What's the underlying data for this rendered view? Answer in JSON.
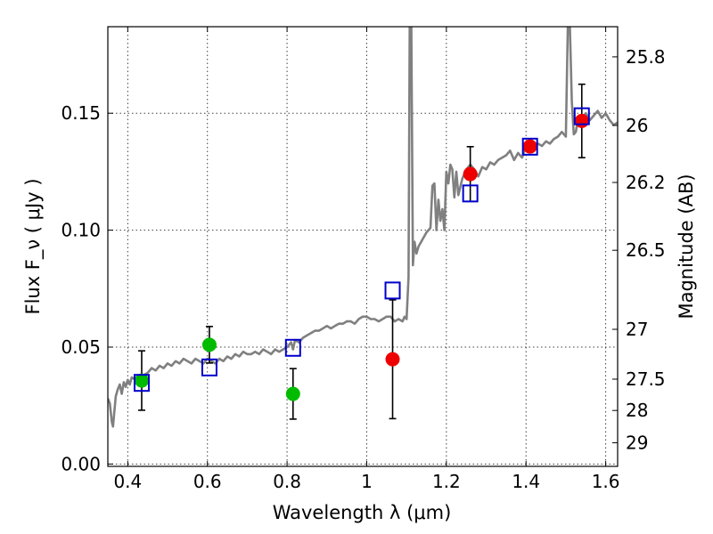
{
  "chart_data": {
    "type": "scatter",
    "xlabel": "Wavelength  λ (μm)",
    "ylabel": "Flux  F_ν  ( μJy )",
    "ylabel_right": "Magnitude (AB)",
    "xlim": [
      0.35,
      1.63
    ],
    "ylim": [
      -0.001,
      0.187
    ],
    "grid": true,
    "x_ticks": [
      0.4,
      0.6,
      0.8,
      1.0,
      1.2,
      1.4,
      1.6
    ],
    "x_tick_labels": [
      "0.4",
      "0.6",
      "0.8",
      "1",
      "1.2",
      "1.4",
      "1.6"
    ],
    "y_ticks": [
      0.0,
      0.05,
      0.1,
      0.15
    ],
    "y_tick_labels": [
      "0.00",
      "0.05",
      "0.10",
      "0.15"
    ],
    "right_ticks": [
      {
        "label": "25.8",
        "flux": 0.1741
      },
      {
        "label": "26",
        "flux": 0.1448
      },
      {
        "label": "26.2",
        "flux": 0.1204
      },
      {
        "label": "26.5",
        "flux": 0.0914
      },
      {
        "label": "27",
        "flux": 0.0576
      },
      {
        "label": "27.5",
        "flux": 0.0363
      },
      {
        "label": "28",
        "flux": 0.0229
      },
      {
        "label": "29",
        "flux": 0.0091
      }
    ],
    "series": [
      {
        "kind": "model-spectrum",
        "color": "#808080",
        "x": [
          0.35,
          0.355,
          0.36,
          0.363,
          0.366,
          0.37,
          0.375,
          0.38,
          0.385,
          0.39,
          0.395,
          0.4,
          0.405,
          0.41,
          0.42,
          0.43,
          0.44,
          0.45,
          0.46,
          0.47,
          0.48,
          0.49,
          0.5,
          0.51,
          0.52,
          0.53,
          0.54,
          0.55,
          0.56,
          0.57,
          0.58,
          0.59,
          0.6,
          0.61,
          0.62,
          0.63,
          0.64,
          0.65,
          0.66,
          0.67,
          0.68,
          0.69,
          0.7,
          0.71,
          0.72,
          0.73,
          0.74,
          0.75,
          0.76,
          0.77,
          0.78,
          0.79,
          0.8,
          0.81,
          0.815,
          0.82,
          0.83,
          0.84,
          0.85,
          0.86,
          0.87,
          0.88,
          0.89,
          0.9,
          0.91,
          0.92,
          0.93,
          0.94,
          0.95,
          0.96,
          0.97,
          0.98,
          0.99,
          1.0,
          1.01,
          1.02,
          1.03,
          1.04,
          1.05,
          1.06,
          1.07,
          1.08,
          1.09,
          1.095,
          1.1,
          1.105,
          1.108,
          1.112,
          1.116,
          1.12,
          1.125,
          1.13,
          1.14,
          1.15,
          1.16,
          1.165,
          1.17,
          1.175,
          1.18,
          1.185,
          1.19,
          1.195,
          1.2,
          1.205,
          1.21,
          1.215,
          1.22,
          1.225,
          1.23,
          1.24,
          1.25,
          1.26,
          1.27,
          1.28,
          1.29,
          1.3,
          1.31,
          1.32,
          1.33,
          1.34,
          1.35,
          1.36,
          1.37,
          1.38,
          1.39,
          1.4,
          1.41,
          1.42,
          1.43,
          1.44,
          1.45,
          1.46,
          1.47,
          1.48,
          1.49,
          1.5,
          1.505,
          1.51,
          1.515,
          1.52,
          1.525,
          1.53,
          1.54,
          1.55,
          1.56,
          1.57,
          1.58,
          1.59,
          1.6,
          1.61,
          1.62,
          1.63
        ],
        "y": [
          0.028,
          0.026,
          0.018,
          0.016,
          0.022,
          0.029,
          0.032,
          0.034,
          0.03,
          0.035,
          0.033,
          0.036,
          0.034,
          0.037,
          0.036,
          0.037,
          0.038,
          0.039,
          0.041,
          0.04,
          0.042,
          0.041,
          0.043,
          0.042,
          0.044,
          0.043,
          0.045,
          0.044,
          0.043,
          0.045,
          0.044,
          0.043,
          0.045,
          0.044,
          0.043,
          0.045,
          0.044,
          0.046,
          0.045,
          0.047,
          0.046,
          0.048,
          0.047,
          0.047,
          0.048,
          0.047,
          0.049,
          0.048,
          0.047,
          0.049,
          0.048,
          0.049,
          0.05,
          0.052,
          0.049,
          0.053,
          0.052,
          0.054,
          0.055,
          0.056,
          0.057,
          0.057,
          0.058,
          0.059,
          0.058,
          0.059,
          0.06,
          0.06,
          0.061,
          0.061,
          0.06,
          0.062,
          0.063,
          0.063,
          0.062,
          0.062,
          0.061,
          0.062,
          0.063,
          0.063,
          0.061,
          0.062,
          0.061,
          0.063,
          0.062,
          0.08,
          0.187,
          0.187,
          0.085,
          0.095,
          0.09,
          0.093,
          0.096,
          0.099,
          0.101,
          0.119,
          0.12,
          0.1,
          0.113,
          0.104,
          0.109,
          0.1,
          0.125,
          0.12,
          0.128,
          0.126,
          0.114,
          0.125,
          0.115,
          0.122,
          0.126,
          0.128,
          0.126,
          0.123,
          0.127,
          0.126,
          0.129,
          0.128,
          0.13,
          0.131,
          0.132,
          0.134,
          0.13,
          0.133,
          0.131,
          0.136,
          0.134,
          0.135,
          0.137,
          0.136,
          0.138,
          0.137,
          0.139,
          0.14,
          0.142,
          0.14,
          0.187,
          0.187,
          0.155,
          0.141,
          0.142,
          0.147,
          0.148,
          0.15,
          0.147,
          0.149,
          0.151,
          0.148,
          0.15,
          0.147,
          0.145,
          0.146
        ]
      },
      {
        "kind": "blue-open-squares",
        "color": "#0000cc",
        "x": [
          0.435,
          0.605,
          0.815,
          1.065,
          1.26,
          1.41,
          1.54
        ],
        "y": [
          0.0347,
          0.0413,
          0.0497,
          0.0742,
          0.1157,
          0.1357,
          0.1487
        ]
      },
      {
        "kind": "green-points",
        "color": "#00bb00",
        "x": [
          0.435,
          0.605,
          0.815
        ],
        "y": [
          0.0357,
          0.051,
          0.03
        ],
        "err": [
          0.0127,
          0.0078,
          0.0108
        ]
      },
      {
        "kind": "red-points",
        "color": "#ee0000",
        "x": [
          1.065,
          1.26,
          1.41,
          1.54
        ],
        "y": [
          0.0448,
          0.124,
          0.1358,
          0.1467
        ],
        "err": [
          0.0254,
          0.0117,
          0.0,
          0.0157
        ]
      }
    ]
  }
}
